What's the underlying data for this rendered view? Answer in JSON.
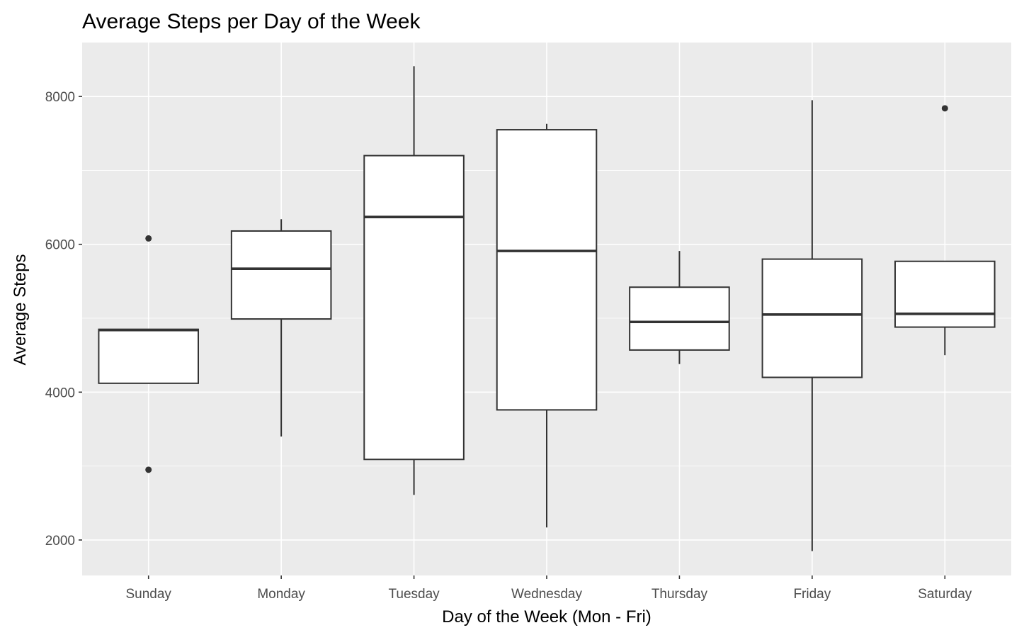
{
  "chart_data": {
    "type": "boxplot",
    "title": "Average Steps per Day of the Week",
    "xlabel": "Day of the Week (Mon - Fri)",
    "ylabel": "Average Steps",
    "ylim": [
      1520,
      8730
    ],
    "yticks": [
      2000,
      4000,
      6000,
      8000
    ],
    "yticks_minor": [
      3000,
      5000,
      7000
    ],
    "grid": true,
    "categories": [
      "Sunday",
      "Monday",
      "Tuesday",
      "Wednesday",
      "Thursday",
      "Friday",
      "Saturday"
    ],
    "boxes": [
      {
        "category": "Sunday",
        "whisker_low": 4120,
        "q1": 4120,
        "median": 4840,
        "q3": 4850,
        "whisker_high": 4850,
        "outliers": [
          6080,
          2950
        ]
      },
      {
        "category": "Monday",
        "whisker_low": 3400,
        "q1": 4990,
        "median": 5670,
        "q3": 6180,
        "whisker_high": 6340,
        "outliers": []
      },
      {
        "category": "Tuesday",
        "whisker_low": 2610,
        "q1": 3090,
        "median": 6370,
        "q3": 7200,
        "whisker_high": 8410,
        "outliers": []
      },
      {
        "category": "Wednesday",
        "whisker_low": 2170,
        "q1": 3760,
        "median": 5910,
        "q3": 7550,
        "whisker_high": 7630,
        "outliers": []
      },
      {
        "category": "Thursday",
        "whisker_low": 4380,
        "q1": 4570,
        "median": 4950,
        "q3": 5420,
        "whisker_high": 5910,
        "outliers": []
      },
      {
        "category": "Friday",
        "whisker_low": 1850,
        "q1": 4200,
        "median": 5050,
        "q3": 5800,
        "whisker_high": 7950,
        "outliers": []
      },
      {
        "category": "Saturday",
        "whisker_low": 4500,
        "q1": 4880,
        "median": 5060,
        "q3": 5770,
        "whisker_high": 5770,
        "outliers": [
          7840
        ]
      }
    ],
    "colors": {
      "panel": "#ebebeb",
      "grid": "#ffffff",
      "box_fill": "#ffffff",
      "box_stroke": "#333333",
      "outlier": "#333333"
    }
  }
}
